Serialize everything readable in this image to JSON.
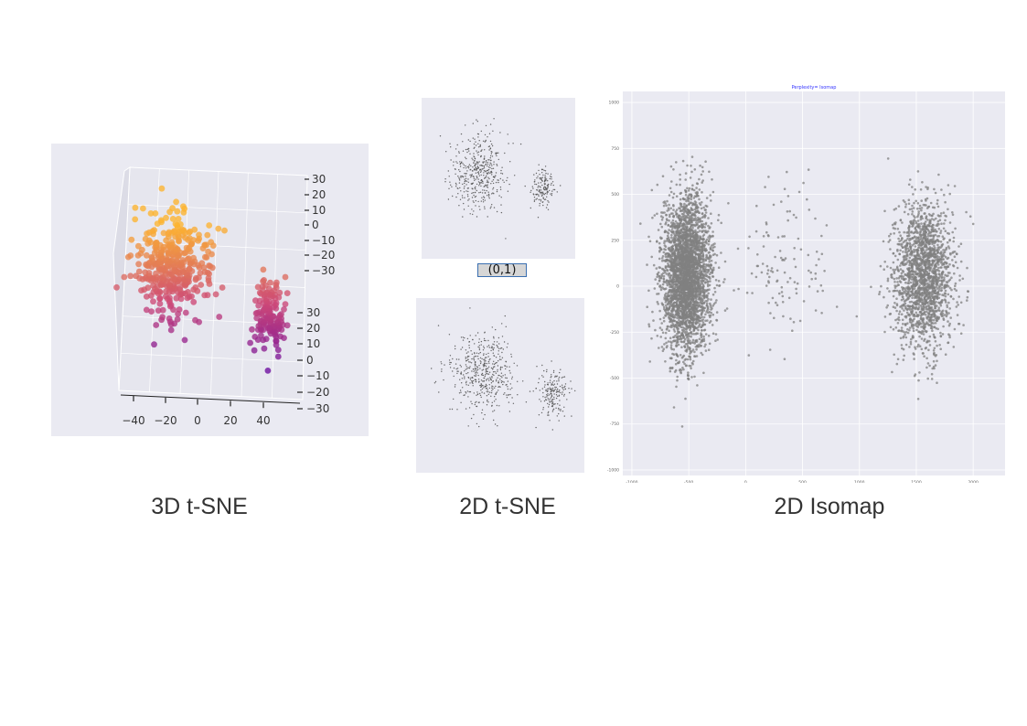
{
  "captions": {
    "tsne3d": "3D t-SNE",
    "tsne2d": "2D t-SNE",
    "isomap": "2D Isomap"
  },
  "badge": "(0,1)",
  "colors": {
    "panel_bg": "#eaeaf2",
    "isomap_points": "#808080",
    "tsne_points": "#555555",
    "plasma_low": "#5c01a6",
    "plasma_mid": "#cc4778",
    "plasma_high": "#fdb42f",
    "isomap_title": "#3333ff"
  },
  "chart_data": [
    {
      "id": "tsne3d",
      "type": "scatter",
      "projection": "3d",
      "title": "",
      "xlabel": "",
      "ylabel": "",
      "zlabel": "",
      "x_ticks": [
        "−40",
        "−20",
        "0",
        "20",
        "40"
      ],
      "y_ticks": [
        "30",
        "20",
        "10",
        "0",
        "−10",
        "−20",
        "−30"
      ],
      "z_ticks": [
        "30",
        "20",
        "10",
        "0",
        "−10",
        "−20",
        "−30"
      ],
      "xlim": [
        -45,
        45
      ],
      "ylim": [
        -35,
        35
      ],
      "zlim": [
        -35,
        35
      ],
      "colormap": "plasma",
      "clusters": [
        {
          "center": [
            -8,
            10
          ],
          "spread": [
            13,
            14
          ],
          "count": 380
        },
        {
          "center": [
            30,
            -5
          ],
          "spread": [
            5,
            10
          ],
          "count": 140
        }
      ],
      "grid": true
    },
    {
      "id": "tsne2d_top",
      "type": "scatter",
      "title": "",
      "xlabel": "",
      "ylabel": "",
      "xlim": [
        -60,
        60
      ],
      "ylim": [
        -60,
        60
      ],
      "clusters": [
        {
          "center": [
            -15,
            5
          ],
          "spread": [
            20,
            28
          ],
          "count": 440
        },
        {
          "center": [
            35,
            -8
          ],
          "spread": [
            8,
            14
          ],
          "count": 150
        }
      ],
      "grid": true
    },
    {
      "id": "tsne2d_bottom",
      "type": "scatter",
      "title": "",
      "xlabel": "",
      "ylabel": "",
      "xlim": [
        -60,
        60
      ],
      "ylim": [
        -60,
        60
      ],
      "clusters": [
        {
          "center": [
            -12,
            8
          ],
          "spread": [
            22,
            26
          ],
          "count": 480
        },
        {
          "center": [
            38,
            -5
          ],
          "spread": [
            9,
            15
          ],
          "count": 180
        }
      ],
      "grid": true
    },
    {
      "id": "isomap",
      "type": "scatter",
      "title": "Perplexity= Isomap",
      "xlabel": "",
      "ylabel": "",
      "x_ticks": [
        -1000,
        -500,
        0,
        500,
        1000,
        1500,
        2000
      ],
      "y_ticks": [
        1000,
        750,
        500,
        250,
        0,
        -250,
        -500,
        -750,
        -1000
      ],
      "xlim": [
        -1080,
        2280
      ],
      "ylim": [
        -1030,
        1060
      ],
      "clusters": [
        {
          "center": [
            -520,
            60
          ],
          "spread": [
            190,
            380
          ],
          "count": 3400
        },
        {
          "center": [
            1570,
            60
          ],
          "spread": [
            240,
            340
          ],
          "count": 1900
        },
        {
          "center": [
            300,
            100
          ],
          "spread": [
            450,
            400
          ],
          "count": 120
        }
      ],
      "grid": true
    }
  ]
}
